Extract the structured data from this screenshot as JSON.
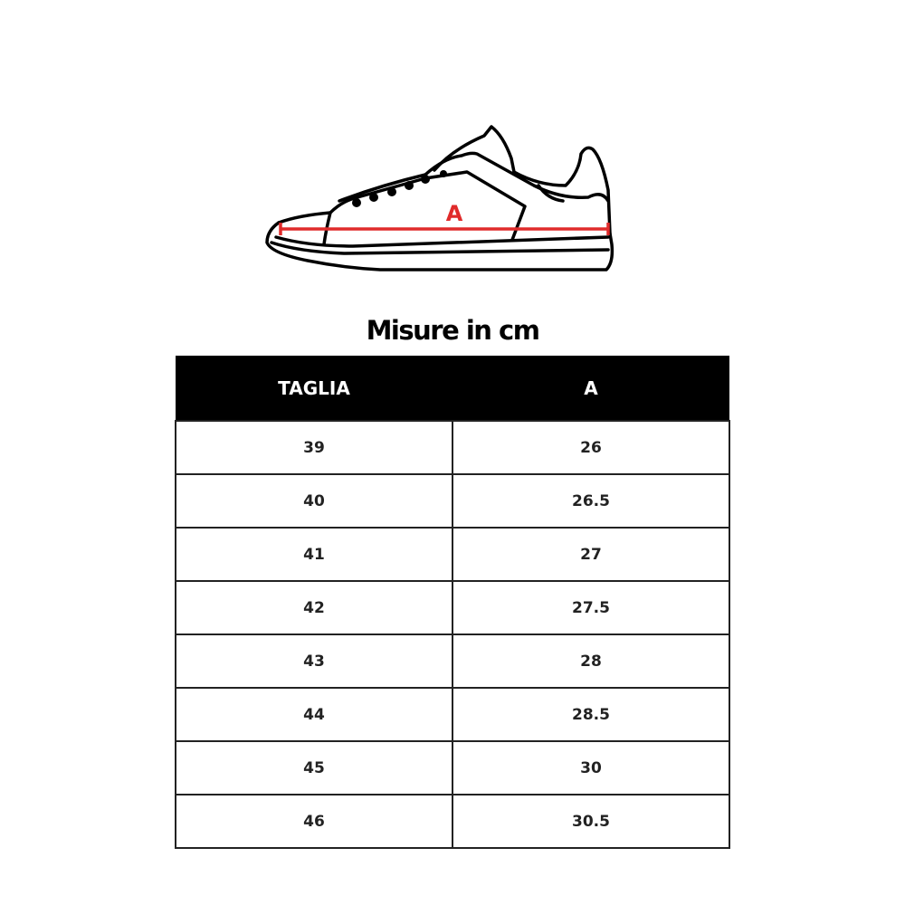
{
  "illustration": {
    "measure_label": "A",
    "accent_color": "#e02b2b"
  },
  "title": "Misure in cm",
  "table": {
    "headers": [
      "TAGLIA",
      "A"
    ],
    "rows": [
      [
        "39",
        "26"
      ],
      [
        "40",
        "26.5"
      ],
      [
        "41",
        "27"
      ],
      [
        "42",
        "27.5"
      ],
      [
        "43",
        "28"
      ],
      [
        "44",
        "28.5"
      ],
      [
        "45",
        "30"
      ],
      [
        "46",
        "30.5"
      ]
    ]
  }
}
